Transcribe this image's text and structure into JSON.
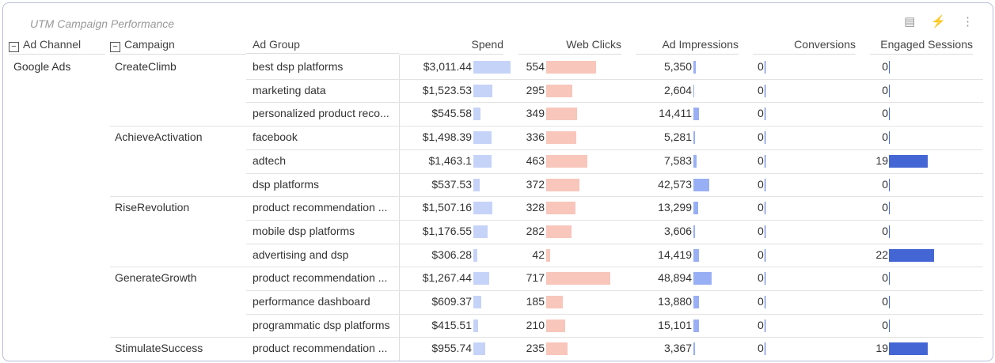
{
  "title": "UTM Campaign Performance",
  "toolbar_icons": [
    "chart-settings-icon",
    "lightning-icon",
    "more-vertical-icon"
  ],
  "columns": [
    "Ad Channel",
    "Campaign",
    "Ad Group",
    "Spend",
    "Web Clicks",
    "Ad Impressions",
    "Conversions",
    "Engaged Sessions"
  ],
  "colors": {
    "spend": "#c6d3f8",
    "clicks": "#f8c6bb",
    "impressions": "#99aff5",
    "sessions": "#4466d4",
    "conversions": "#4466d4"
  },
  "channel": "Google Ads",
  "rows": [
    {
      "campaign": "CreateClimb",
      "ad_group": "best dsp platforms",
      "spend": "$3,011.44",
      "spend_v": 3011.44,
      "clicks": 554,
      "impressions": "5,350",
      "impressions_v": 5350,
      "conversions": 0,
      "sessions": 0
    },
    {
      "campaign": "",
      "ad_group": "marketing data",
      "spend": "$1,523.53",
      "spend_v": 1523.53,
      "clicks": 295,
      "impressions": "2,604",
      "impressions_v": 2604,
      "conversions": 0,
      "sessions": 0
    },
    {
      "campaign": "",
      "ad_group": "personalized product reco...",
      "spend": "$545.58",
      "spend_v": 545.58,
      "clicks": 349,
      "impressions": "14,411",
      "impressions_v": 14411,
      "conversions": 0,
      "sessions": 0
    },
    {
      "campaign": "AchieveActivation",
      "ad_group": "facebook",
      "spend": "$1,498.39",
      "spend_v": 1498.39,
      "clicks": 336,
      "impressions": "5,281",
      "impressions_v": 5281,
      "conversions": 0,
      "sessions": 0
    },
    {
      "campaign": "",
      "ad_group": "adtech",
      "spend": "$1,463.1",
      "spend_v": 1463.1,
      "clicks": 463,
      "impressions": "7,583",
      "impressions_v": 7583,
      "conversions": 0,
      "sessions": 19
    },
    {
      "campaign": "",
      "ad_group": "dsp platforms",
      "spend": "$537.53",
      "spend_v": 537.53,
      "clicks": 372,
      "impressions": "42,573",
      "impressions_v": 42573,
      "conversions": 0,
      "sessions": 0
    },
    {
      "campaign": "RiseRevolution",
      "ad_group": "product recommendation ...",
      "spend": "$1,507.16",
      "spend_v": 1507.16,
      "clicks": 328,
      "impressions": "13,299",
      "impressions_v": 13299,
      "conversions": 0,
      "sessions": 0
    },
    {
      "campaign": "",
      "ad_group": "mobile dsp platforms",
      "spend": "$1,176.55",
      "spend_v": 1176.55,
      "clicks": 282,
      "impressions": "3,606",
      "impressions_v": 3606,
      "conversions": 0,
      "sessions": 0
    },
    {
      "campaign": "",
      "ad_group": "advertising and dsp",
      "spend": "$306.28",
      "spend_v": 306.28,
      "clicks": 42,
      "impressions": "14,419",
      "impressions_v": 14419,
      "conversions": 0,
      "sessions": 22
    },
    {
      "campaign": "GenerateGrowth",
      "ad_group": "product recommendation ...",
      "spend": "$1,267.44",
      "spend_v": 1267.44,
      "clicks": 717,
      "impressions": "48,894",
      "impressions_v": 48894,
      "conversions": 0,
      "sessions": 0
    },
    {
      "campaign": "",
      "ad_group": "performance dashboard",
      "spend": "$609.37",
      "spend_v": 609.37,
      "clicks": 185,
      "impressions": "13,880",
      "impressions_v": 13880,
      "conversions": 0,
      "sessions": 0
    },
    {
      "campaign": "",
      "ad_group": "programmatic dsp platforms",
      "spend": "$415.51",
      "spend_v": 415.51,
      "clicks": 210,
      "impressions": "15,101",
      "impressions_v": 15101,
      "conversions": 0,
      "sessions": 0
    },
    {
      "campaign": "StimulateSuccess",
      "ad_group": "product recommendation ...",
      "spend": "$955.74",
      "spend_v": 955.74,
      "clicks": 235,
      "impressions": "3,367",
      "impressions_v": 3367,
      "conversions": 0,
      "sessions": 19
    }
  ]
}
